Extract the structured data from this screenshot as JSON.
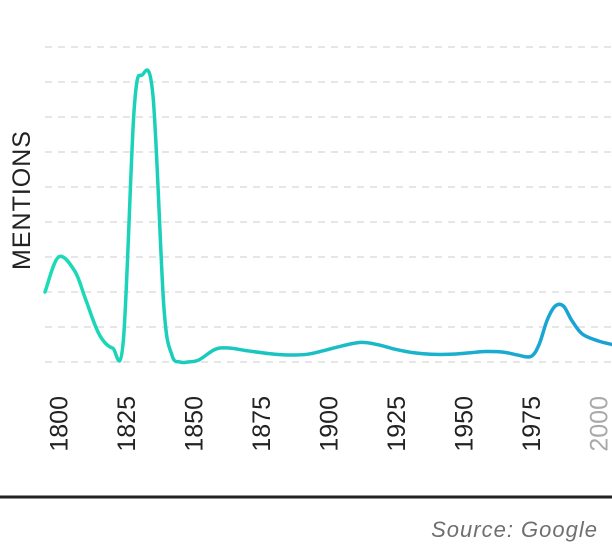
{
  "chart_data": {
    "type": "line",
    "title": "",
    "xlabel": "",
    "ylabel": "MENTIONS",
    "xlim": [
      1795,
      2005
    ],
    "x_ticks": [
      "1800",
      "1825",
      "1850",
      "1875",
      "1900",
      "1925",
      "1950",
      "1975",
      "2000"
    ],
    "y_ticks_shown": false,
    "grid": true,
    "grid_style": "dashed",
    "colors": {
      "start": "#1bdcb4",
      "end": "#1a9fd6",
      "axis": "#222222",
      "grid": "#dedede",
      "faded_tick": "#a9a9a9"
    },
    "series": [
      {
        "x": [
          1795,
          1800,
          1806,
          1810,
          1815,
          1820,
          1824,
          1828,
          1831,
          1835,
          1839,
          1842,
          1845,
          1848,
          1852,
          1858,
          1863,
          1870,
          1878,
          1885,
          1892,
          1898,
          1905,
          1912,
          1918,
          1925,
          1932,
          1938,
          1945,
          1952,
          1958,
          1965,
          1970,
          1975,
          1978,
          1981,
          1984,
          1987,
          1990,
          1994,
          2000,
          2005
        ],
        "y": [
          10,
          15,
          13,
          9,
          4,
          2,
          3,
          36,
          41,
          38,
          8,
          1,
          0,
          0,
          0.3,
          1.8,
          2,
          1.6,
          1.2,
          1,
          1.1,
          1.6,
          2.3,
          2.8,
          2.5,
          1.8,
          1.3,
          1.1,
          1.1,
          1.3,
          1.5,
          1.4,
          1,
          0.8,
          2.5,
          6,
          8,
          8,
          6,
          4,
          3,
          2.5
        ]
      }
    ]
  },
  "source": "Source: Google"
}
